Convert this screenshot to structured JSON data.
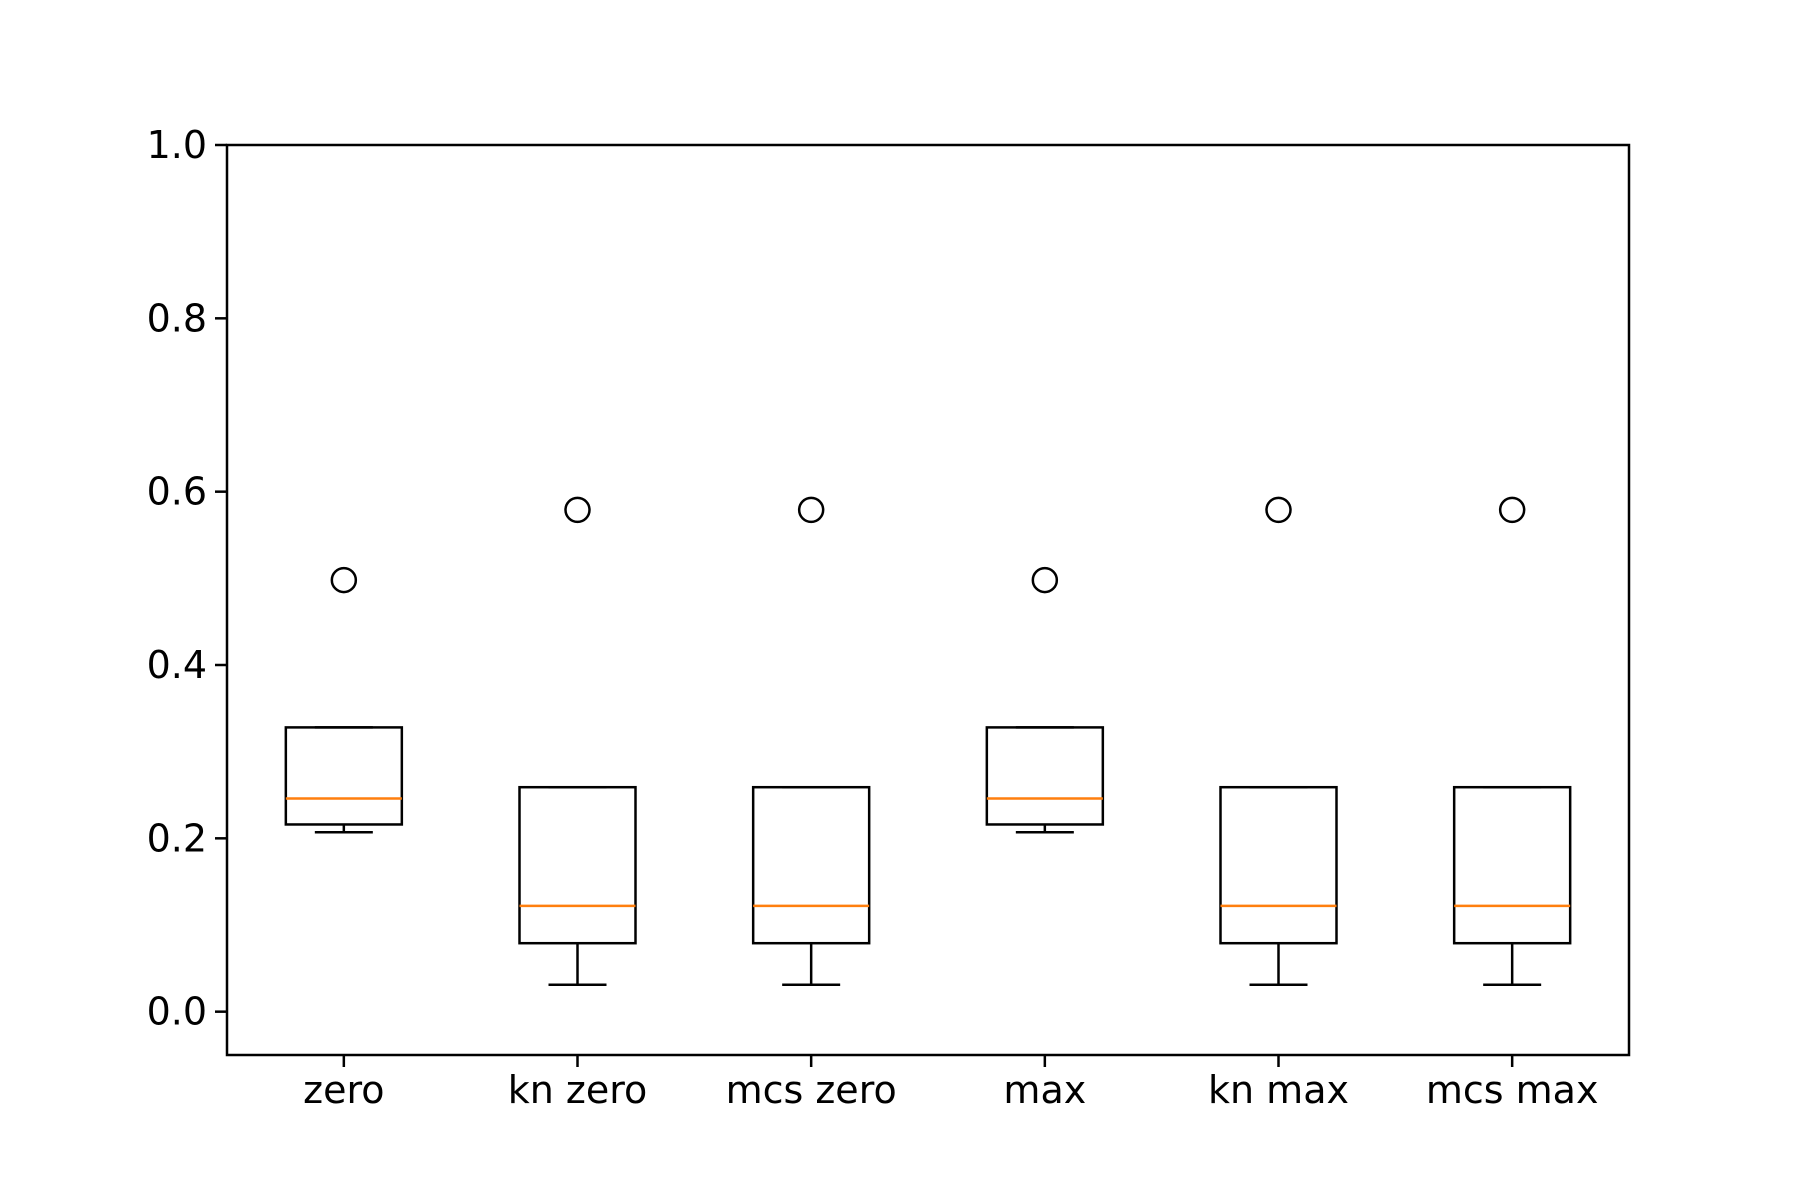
{
  "chart_data": {
    "type": "boxplot",
    "categories": [
      "zero",
      "kn zero",
      "mcs zero",
      "max",
      "kn max",
      "mcs max"
    ],
    "ylim": [
      -0.05,
      1.0
    ],
    "yticks": [
      0.0,
      0.2,
      0.4,
      0.6,
      0.8,
      1.0
    ],
    "ytick_labels": [
      "0.0",
      "0.2",
      "0.4",
      "0.6",
      "0.8",
      "1.0"
    ],
    "grid": false,
    "title": "",
    "xlabel": "",
    "ylabel": "",
    "boxes": [
      {
        "whisker_low": 0.207,
        "q1": 0.216,
        "median": 0.246,
        "q3": 0.328,
        "whisker_high": 0.328,
        "outliers": [
          0.498
        ]
      },
      {
        "whisker_low": 0.031,
        "q1": 0.079,
        "median": 0.122,
        "q3": 0.259,
        "whisker_high": 0.259,
        "outliers": [
          0.579
        ]
      },
      {
        "whisker_low": 0.031,
        "q1": 0.079,
        "median": 0.122,
        "q3": 0.259,
        "whisker_high": 0.259,
        "outliers": [
          0.579
        ]
      },
      {
        "whisker_low": 0.207,
        "q1": 0.216,
        "median": 0.246,
        "q3": 0.328,
        "whisker_high": 0.328,
        "outliers": [
          0.498
        ]
      },
      {
        "whisker_low": 0.031,
        "q1": 0.079,
        "median": 0.122,
        "q3": 0.259,
        "whisker_high": 0.259,
        "outliers": [
          0.579
        ]
      },
      {
        "whisker_low": 0.031,
        "q1": 0.079,
        "median": 0.122,
        "q3": 0.259,
        "whisker_high": 0.259,
        "outliers": [
          0.579
        ]
      }
    ],
    "colors": {
      "box": "#000000",
      "median": "#ff7f0e",
      "outlier_edge": "#000000",
      "background": "#ffffff"
    }
  }
}
